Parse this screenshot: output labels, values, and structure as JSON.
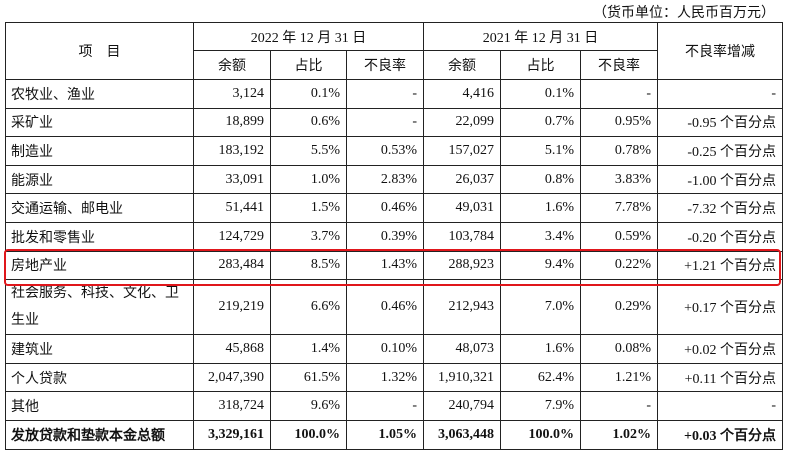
{
  "unit_note": "（货币单位：人民币百万元）",
  "header": {
    "item": "项　目",
    "period_2022": "2022 年 12 月 31 日",
    "period_2021": "2021 年 12 月 31 日",
    "change": "不良率增减",
    "balance": "余额",
    "share": "占比",
    "npl": "不良率"
  },
  "rows": [
    {
      "name": "农牧业、渔业",
      "b22": "3,124",
      "s22": "0.1%",
      "n22": "-",
      "b21": "4,416",
      "s21": "0.1%",
      "n21": "-",
      "chg": "-"
    },
    {
      "name": "采矿业",
      "b22": "18,899",
      "s22": "0.6%",
      "n22": "-",
      "b21": "22,099",
      "s21": "0.7%",
      "n21": "0.95%",
      "chg": "-0.95 个百分点"
    },
    {
      "name": "制造业",
      "b22": "183,192",
      "s22": "5.5%",
      "n22": "0.53%",
      "b21": "157,027",
      "s21": "5.1%",
      "n21": "0.78%",
      "chg": "-0.25 个百分点"
    },
    {
      "name": "能源业",
      "b22": "33,091",
      "s22": "1.0%",
      "n22": "2.83%",
      "b21": "26,037",
      "s21": "0.8%",
      "n21": "3.83%",
      "chg": "-1.00 个百分点"
    },
    {
      "name": "交通运输、邮电业",
      "b22": "51,441",
      "s22": "1.5%",
      "n22": "0.46%",
      "b21": "49,031",
      "s21": "1.6%",
      "n21": "7.78%",
      "chg": "-7.32 个百分点"
    },
    {
      "name": "批发和零售业",
      "b22": "124,729",
      "s22": "3.7%",
      "n22": "0.39%",
      "b21": "103,784",
      "s21": "3.4%",
      "n21": "0.59%",
      "chg": "-0.20 个百分点"
    },
    {
      "name": "房地产业",
      "b22": "283,484",
      "s22": "8.5%",
      "n22": "1.43%",
      "b21": "288,923",
      "s21": "9.4%",
      "n21": "0.22%",
      "chg": "+1.21 个百分点"
    },
    {
      "name": "社会服务、科技、文化、卫生业",
      "b22": "219,219",
      "s22": "6.6%",
      "n22": "0.46%",
      "b21": "212,943",
      "s21": "7.0%",
      "n21": "0.29%",
      "chg": "+0.17 个百分点"
    },
    {
      "name": "建筑业",
      "b22": "45,868",
      "s22": "1.4%",
      "n22": "0.10%",
      "b21": "48,073",
      "s21": "1.6%",
      "n21": "0.08%",
      "chg": "+0.02 个百分点"
    },
    {
      "name": "个人贷款",
      "b22": "2,047,390",
      "s22": "61.5%",
      "n22": "1.32%",
      "b21": "1,910,321",
      "s21": "62.4%",
      "n21": "1.21%",
      "chg": "+0.11 个百分点"
    },
    {
      "name": "其他",
      "b22": "318,724",
      "s22": "9.6%",
      "n22": "-",
      "b21": "240,794",
      "s21": "7.9%",
      "n21": "-",
      "chg": "-"
    },
    {
      "name": "发放贷款和垫款本金总额",
      "b22": "3,329,161",
      "s22": "100.0%",
      "n22": "1.05%",
      "b21": "3,063,448",
      "s21": "100.0%",
      "n21": "1.02%",
      "chg": "+0.03 个百分点"
    }
  ],
  "highlight_color": "#e0161b"
}
